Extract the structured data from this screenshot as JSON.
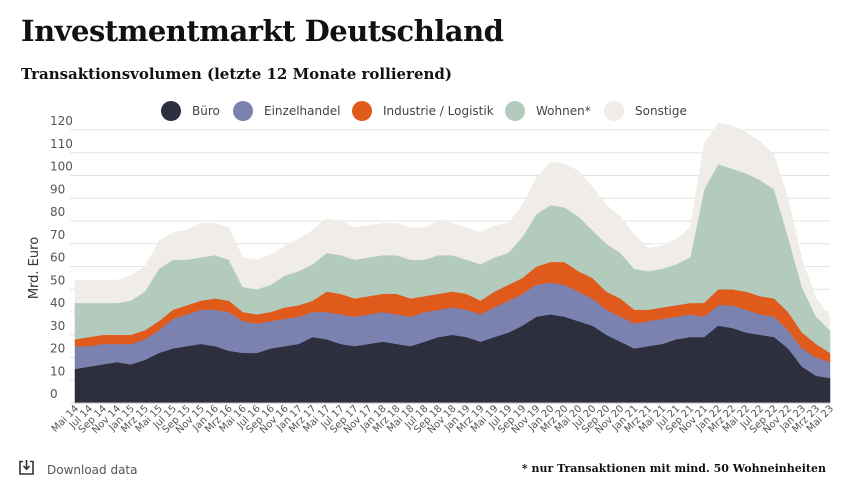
{
  "header": {
    "title": "Investmentmarkt Deutschland",
    "subtitle": "Transaktionsvolumen (letzte 12 Monate rollierend)"
  },
  "footer": {
    "download_label": "Download data",
    "footnote": "* nur Transaktionen mit mind. 50 Wohneinheiten"
  },
  "icons": {
    "download": "download-icon"
  },
  "chart_data": {
    "type": "area",
    "stacked": true,
    "title": "Transaktionsvolumen (letzte 12 Monate rollierend)",
    "ylabel": "Mrd. Euro",
    "xlabel": "",
    "ylim": [
      0,
      120
    ],
    "yticks": [
      0,
      10,
      20,
      30,
      40,
      50,
      60,
      70,
      80,
      90,
      100,
      110,
      120
    ],
    "grid": true,
    "legend_position": "top-center",
    "categories": [
      "Mai 14",
      "Jul 14",
      "Sep 14",
      "Nov 14",
      "Jan 15",
      "Mrz 15",
      "Mai 15",
      "Jul 15",
      "Sep 15",
      "Nov 15",
      "Jan 16",
      "Mrz 16",
      "Mai 16",
      "Jul 16",
      "Sep 16",
      "Nov 16",
      "Jan 17",
      "Mrz 17",
      "Mai 17",
      "Jul 17",
      "Sep 17",
      "Nov 17",
      "Jan 18",
      "Mrz 18",
      "Mai 18",
      "Jul 18",
      "Sep 18",
      "Nov 18",
      "Jan 19",
      "Mrz 19",
      "Mai 19",
      "Jul 19",
      "Sep 19",
      "Nov 19",
      "Jan 20",
      "Mrz 20",
      "Mai 20",
      "Jul 20",
      "Sep 20",
      "Nov 20",
      "Jan 21",
      "Mrz 21",
      "Mai 21",
      "Jul 21",
      "Sep 21",
      "Nov 21",
      "Jan 22",
      "Mrz 22",
      "Mai 22",
      "Jul 22",
      "Sep 22",
      "Nov 22",
      "Jan 23",
      "Mrz 23",
      "Mai 23"
    ],
    "series": [
      {
        "name": "Büro",
        "color": "#2d2e3e",
        "values": [
          15,
          16,
          17,
          18,
          17,
          19,
          22,
          24,
          25,
          26,
          25,
          23,
          22,
          22,
          24,
          25,
          26,
          29,
          28,
          26,
          25,
          26,
          27,
          26,
          25,
          27,
          29,
          30,
          29,
          27,
          29,
          31,
          34,
          38,
          39,
          38,
          36,
          34,
          30,
          27,
          24,
          25,
          26,
          28,
          29,
          29,
          34,
          33,
          31,
          30,
          29,
          24,
          16,
          12,
          11
        ]
      },
      {
        "name": "Einzelhandel",
        "color": "#7c82b0",
        "values": [
          10,
          9,
          9,
          8,
          9,
          9,
          10,
          13,
          14,
          15,
          16,
          17,
          14,
          13,
          12,
          12,
          12,
          11,
          12,
          13,
          13,
          13,
          13,
          13,
          13,
          13,
          12,
          12,
          12,
          12,
          13,
          14,
          14,
          14,
          14,
          14,
          13,
          12,
          11,
          11,
          11,
          11,
          11,
          10,
          10,
          9,
          9,
          10,
          10,
          9,
          9,
          8,
          8,
          8,
          7
        ]
      },
      {
        "name": "Industrie / Logistik",
        "color": "#e05a1c",
        "values": [
          3,
          4,
          4,
          4,
          4,
          4,
          4,
          4,
          4,
          4,
          5,
          5,
          4,
          4,
          4,
          5,
          5,
          5,
          9,
          9,
          8,
          8,
          8,
          9,
          8,
          7,
          7,
          7,
          7,
          6,
          7,
          7,
          7,
          8,
          9,
          10,
          9,
          9,
          8,
          8,
          6,
          5,
          5,
          5,
          5,
          6,
          7,
          7,
          8,
          8,
          8,
          8,
          7,
          6,
          4
        ]
      },
      {
        "name": "Wohnen*",
        "color": "#b3cbbd",
        "values": [
          16,
          15,
          14,
          14,
          15,
          17,
          23,
          22,
          20,
          19,
          19,
          18,
          11,
          11,
          12,
          14,
          15,
          16,
          17,
          17,
          17,
          17,
          17,
          17,
          17,
          16,
          17,
          16,
          15,
          16,
          15,
          14,
          18,
          23,
          25,
          24,
          24,
          21,
          21,
          20,
          18,
          17,
          17,
          18,
          20,
          50,
          55,
          53,
          52,
          51,
          48,
          33,
          20,
          12,
          10
        ]
      },
      {
        "name": "Sonstige",
        "color": "#f0ece8",
        "values": [
          10,
          10,
          10,
          10,
          11,
          11,
          12,
          12,
          13,
          15,
          14,
          14,
          13,
          13,
          13,
          13,
          14,
          15,
          15,
          15,
          14,
          14,
          14,
          14,
          14,
          14,
          15,
          14,
          14,
          14,
          14,
          13,
          14,
          16,
          19,
          19,
          20,
          19,
          17,
          16,
          15,
          10,
          10,
          11,
          13,
          20,
          18,
          19,
          18,
          17,
          15,
          17,
          12,
          8,
          6
        ]
      }
    ]
  }
}
